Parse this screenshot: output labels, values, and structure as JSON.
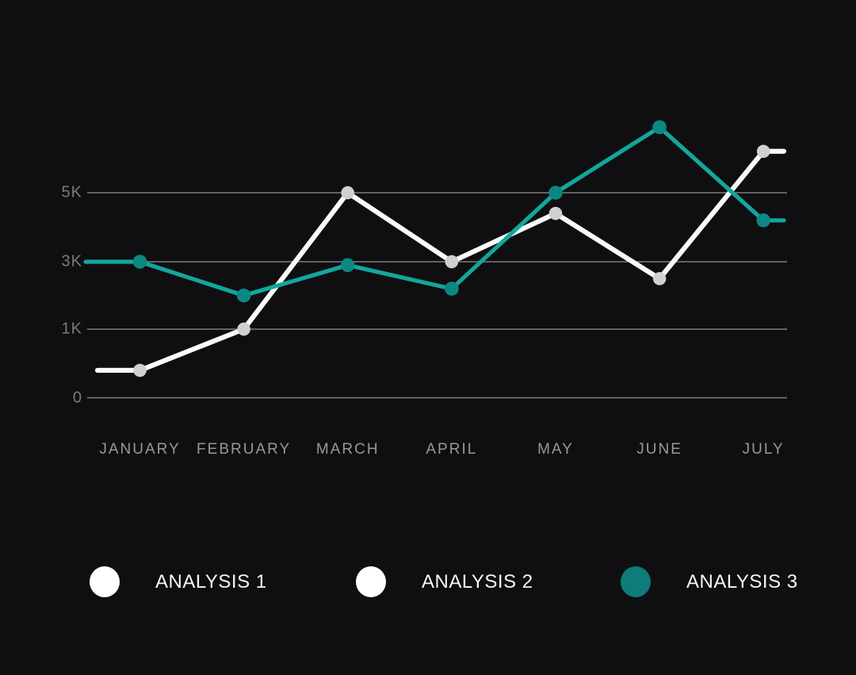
{
  "chart_data": {
    "type": "line",
    "title": "",
    "xlabel": "",
    "ylabel": "",
    "categories": [
      "JANUARY",
      "FEBRUARY",
      "MARCH",
      "APRIL",
      "MAY",
      "JUNE",
      "JULY"
    ],
    "y_ticks": [
      {
        "label": "0",
        "value": 0
      },
      {
        "label": "1K",
        "value": 1000
      },
      {
        "label": "3K",
        "value": 3000
      },
      {
        "label": "5K",
        "value": 5000
      }
    ],
    "y_axis_note": "tick labels 0, 1K, 3K, 5K are evenly spaced gridlines",
    "grid": true,
    "legend_position": "bottom",
    "series": [
      {
        "name": "ANALYSIS 1",
        "line_color": "#fafafa",
        "marker_color": "#d0d0d0",
        "values": [
          400,
          1000,
          5000,
          3000,
          4400,
          2500,
          6200
        ]
      },
      {
        "name": "ANALYSIS 2",
        "line_color": "#fafafa",
        "marker_color": "#d0d0d0",
        "values": [
          400,
          1000,
          5000,
          3000,
          4400,
          2500,
          6200
        ],
        "note": "white polyline coincides with ANALYSIS 1 (only one white line visible)"
      },
      {
        "name": "ANALYSIS 3",
        "line_color": "#12a79c",
        "marker_color": "#0d8781",
        "values": [
          3000,
          2000,
          2900,
          2200,
          5000,
          6900,
          4200
        ]
      }
    ],
    "legend": [
      {
        "label": "ANALYSIS 1",
        "swatch_color": "#ffffff"
      },
      {
        "label": "ANALYSIS 2",
        "swatch_color": "#ffffff"
      },
      {
        "label": "ANALYSIS 3",
        "swatch_color": "#0f7c79"
      }
    ],
    "colors": {
      "background": "#0f0f11",
      "gridline": "#7f7e82",
      "x_label": "#98979b",
      "y_label": "#7b7a7e",
      "legend_text": "#f7f7f7"
    }
  }
}
